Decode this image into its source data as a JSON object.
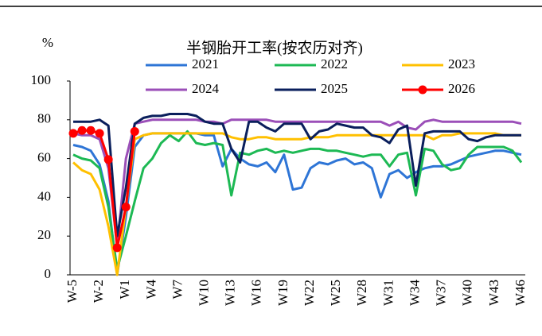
{
  "chart_data": {
    "type": "line",
    "title": "半钢胎开工率(按农历对齐)",
    "ylabel": "%",
    "categories": [
      "W-5",
      null,
      null,
      "W-2",
      null,
      null,
      "W1",
      null,
      null,
      "W4",
      null,
      null,
      "W7",
      null,
      null,
      "W10",
      null,
      null,
      "W13",
      null,
      null,
      "W16",
      null,
      null,
      "W19",
      null,
      null,
      "W22",
      null,
      null,
      "W25",
      null,
      null,
      "W28",
      null,
      null,
      "W31",
      null,
      null,
      "W34",
      null,
      null,
      "W37",
      null,
      null,
      "W40",
      null,
      null,
      "W43",
      null,
      null,
      "W46"
    ],
    "ylim": [
      0,
      100
    ],
    "yticks": [
      0,
      20,
      40,
      60,
      80,
      100
    ],
    "grid": false,
    "series": [
      {
        "name": "2021",
        "color": "#2e75d6",
        "values": [
          67,
          66,
          64,
          57,
          38,
          0,
          30,
          66,
          72,
          73,
          73,
          73,
          73,
          73,
          73,
          72,
          72,
          56,
          65,
          60,
          57,
          56,
          58,
          53,
          62,
          44,
          45,
          55,
          58,
          57,
          59,
          60,
          57,
          58,
          55,
          40,
          52,
          54,
          50,
          53,
          55,
          56,
          56,
          57,
          59,
          61,
          62,
          63,
          64,
          64,
          63,
          62
        ]
      },
      {
        "name": "2022",
        "color": "#1db954",
        "values": [
          62,
          60,
          59,
          55,
          35,
          3,
          20,
          38,
          55,
          60,
          68,
          72,
          69,
          74,
          68,
          67,
          68,
          67,
          41,
          63,
          62,
          64,
          65,
          63,
          64,
          63,
          64,
          65,
          65,
          64,
          64,
          63,
          62,
          61,
          62,
          62,
          56,
          62,
          63,
          41,
          65,
          64,
          57,
          54,
          55,
          62,
          66,
          66,
          66,
          66,
          64,
          58
        ]
      },
      {
        "name": "2023",
        "color": "#ffc000",
        "values": [
          58,
          54,
          52,
          44,
          25,
          0,
          35,
          70,
          72,
          73,
          73,
          73,
          73,
          73,
          73,
          73,
          73,
          73,
          71,
          70,
          70,
          71,
          71,
          70,
          70,
          70,
          70,
          71,
          71,
          71,
          72,
          72,
          72,
          72,
          72,
          72,
          72,
          72,
          72,
          72,
          72,
          70,
          72,
          72,
          73,
          73,
          73,
          73,
          73,
          72,
          72,
          72
        ]
      },
      {
        "name": "2024",
        "color": "#9b4fb8",
        "values": [
          73,
          72,
          72,
          70,
          55,
          15,
          60,
          78,
          79,
          80,
          80,
          80,
          80,
          80,
          80,
          79,
          79,
          78,
          80,
          80,
          80,
          80,
          80,
          79,
          79,
          79,
          79,
          79,
          79,
          79,
          79,
          79,
          79,
          79,
          79,
          79,
          77,
          79,
          76,
          75,
          79,
          80,
          79,
          79,
          79,
          79,
          79,
          79,
          79,
          79,
          79,
          78
        ]
      },
      {
        "name": "2025",
        "color": "#0a1f5c",
        "values": [
          79,
          79,
          79,
          80,
          77,
          20,
          45,
          78,
          81,
          82,
          82,
          83,
          83,
          83,
          82,
          79,
          78,
          78,
          65,
          58,
          79,
          79,
          76,
          74,
          78,
          78,
          78,
          70,
          74,
          75,
          78,
          77,
          76,
          76,
          72,
          71,
          68,
          75,
          77,
          46,
          73,
          74,
          74,
          74,
          74,
          70,
          69,
          71,
          72,
          72,
          72,
          72
        ]
      },
      {
        "name": "2026",
        "color": "#ff0000",
        "marker": true,
        "values": [
          73,
          74.5,
          74.5,
          73,
          59.5,
          14,
          35,
          74,
          null,
          null,
          null,
          null,
          null,
          null,
          null,
          null,
          null,
          null,
          null,
          null,
          null,
          null,
          null,
          null,
          null,
          null,
          null,
          null,
          null,
          null,
          null,
          null,
          null,
          null,
          null,
          null,
          null,
          null,
          null,
          null,
          null,
          null,
          null,
          null,
          null,
          null,
          null,
          null,
          null,
          null,
          null,
          null
        ]
      }
    ]
  }
}
